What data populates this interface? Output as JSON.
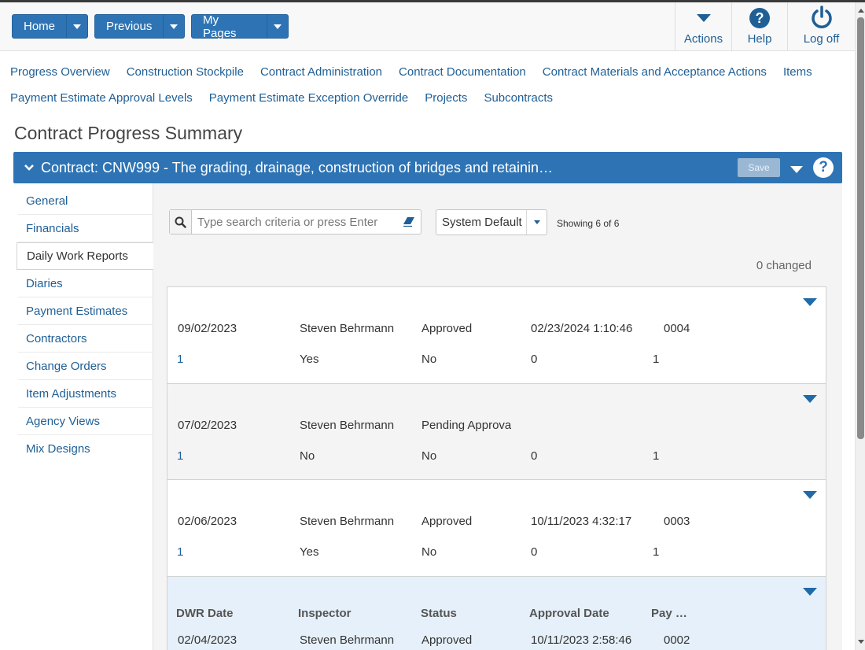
{
  "header": {
    "buttons": [
      {
        "label": "Home"
      },
      {
        "label": "Previous"
      },
      {
        "label": "My Pages"
      }
    ],
    "actions": [
      {
        "label": "Actions",
        "icon": "caret-down-icon"
      },
      {
        "label": "Help",
        "icon": "question-circle-icon"
      },
      {
        "label": "Log off",
        "icon": "power-icon"
      }
    ]
  },
  "quick_links": {
    "row1": [
      "Progress Overview",
      "Construction Stockpile",
      "Contract Administration",
      "Contract Documentation",
      "Contract Materials and Acceptance Actions",
      "Items"
    ],
    "row2": [
      "Payment Estimate Approval Levels",
      "Payment Estimate Exception Override",
      "Projects",
      "Subcontracts"
    ]
  },
  "page_title": "Contract Progress Summary",
  "contract_bar": {
    "title": "Contract: CNW999 - The grading, drainage, construction of bridges and retainin…",
    "save_label": "Save"
  },
  "side_nav": [
    {
      "label": "General"
    },
    {
      "label": "Financials"
    },
    {
      "label": "Daily Work Reports",
      "active": true
    },
    {
      "label": "Diaries"
    },
    {
      "label": "Payment Estimates"
    },
    {
      "label": "Contractors"
    },
    {
      "label": "Change Orders"
    },
    {
      "label": "Item Adjustments"
    },
    {
      "label": "Agency Views"
    },
    {
      "label": "Mix Designs"
    }
  ],
  "toolbar": {
    "search_placeholder": "Type search criteria or press Enter",
    "view": "System Default",
    "showing": "Showing 6 of 6",
    "changed": "0 changed"
  },
  "column_headers": {
    "dwr_date": "DWR Date",
    "inspector": "Inspector",
    "status": "Status",
    "approval_date": "Approval Date",
    "pay": "Pay …"
  },
  "records": [
    {
      "dwr_date": "09/02/2023",
      "inspector": "Steven Behrmann",
      "status": "Approved",
      "approval_date": "02/23/2024 1:10:46",
      "pay": "0004",
      "r2c1": "1",
      "r2c2": "Yes",
      "r2c3": "No",
      "r2c4": "0",
      "r2c5": "1"
    },
    {
      "dwr_date": "07/02/2023",
      "inspector": "Steven Behrmann",
      "status": "Pending Approval",
      "approval_date": "",
      "pay": "",
      "r2c1": "1",
      "r2c2": "No",
      "r2c3": "No",
      "r2c4": "0",
      "r2c5": "1"
    },
    {
      "dwr_date": "02/06/2023",
      "inspector": "Steven Behrmann",
      "status": "Approved",
      "approval_date": "10/11/2023 4:32:17",
      "pay": "0003",
      "r2c1": "1",
      "r2c2": "Yes",
      "r2c3": "No",
      "r2c4": "0",
      "r2c5": "1"
    },
    {
      "dwr_date": "02/04/2023",
      "inspector": "Steven Behrmann",
      "status": "Approved",
      "approval_date": "10/11/2023 2:58:46",
      "pay": "0002"
    }
  ]
}
